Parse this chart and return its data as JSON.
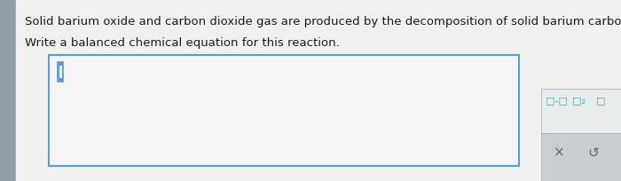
{
  "line1": "Solid barium oxide and carbon dioxide gas are produced by the decomposition of solid barium carbonate .",
  "line2": "Write a balanced chemical equation for this reaction.",
  "bg_color": "#e8ecec",
  "sidebar_color": "#8fa0a8",
  "page_bg": "#f0f0f0",
  "white_bg": "#f5f5f5",
  "input_box_border": "#5b9bd5",
  "cursor_color": "#5b9bd5",
  "text_color": "#1a1a1a",
  "font_size_main": 9.5,
  "symbol_color": "#4da6a6",
  "toolbar_upper_bg": "#e8ecec",
  "toolbar_lower_bg": "#c8cdd0",
  "x_color": "#666666",
  "refresh_color": "#666666"
}
